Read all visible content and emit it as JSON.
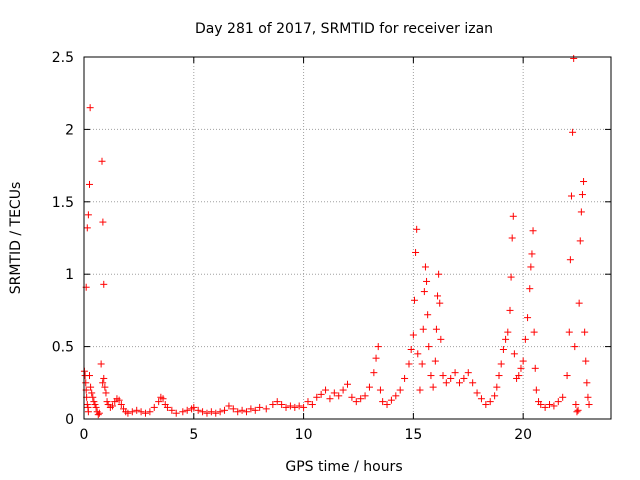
{
  "chart_data": {
    "type": "scatter",
    "title": "Day 281 of 2017, SRMTID for receiver izan",
    "xlabel": "GPS time / hours",
    "ylabel": "SRMTID / TECUs",
    "xlim": [
      0,
      24
    ],
    "ylim": [
      0,
      2.5
    ],
    "grid": true,
    "marker": "+",
    "series_color": "#ff0000",
    "grid_color": "#a0a0a0",
    "x_ticks": [
      {
        "value": 0,
        "label": "0"
      },
      {
        "value": 5,
        "label": "5"
      },
      {
        "value": 10,
        "label": "10"
      },
      {
        "value": 15,
        "label": "15"
      },
      {
        "value": 20,
        "label": "20"
      }
    ],
    "y_ticks": [
      {
        "value": 0,
        "label": "0"
      },
      {
        "value": 0.5,
        "label": "0.5"
      },
      {
        "value": 1,
        "label": "1"
      },
      {
        "value": 1.5,
        "label": "1.5"
      },
      {
        "value": 2,
        "label": "2"
      },
      {
        "value": 2.5,
        "label": "2.5"
      }
    ],
    "series": [
      {
        "name": "SRMTID",
        "points": [
          [
            0.02,
            0.33
          ],
          [
            0.05,
            0.3
          ],
          [
            0.08,
            0.25
          ],
          [
            0.1,
            0.2
          ],
          [
            0.12,
            0.15
          ],
          [
            0.15,
            0.1
          ],
          [
            0.18,
            0.08
          ],
          [
            0.2,
            0.05
          ],
          [
            0.1,
            0.91
          ],
          [
            0.15,
            1.32
          ],
          [
            0.2,
            1.41
          ],
          [
            0.25,
            1.62
          ],
          [
            0.28,
            2.15
          ],
          [
            0.25,
            0.3
          ],
          [
            0.3,
            0.22
          ],
          [
            0.35,
            0.18
          ],
          [
            0.4,
            0.15
          ],
          [
            0.45,
            0.12
          ],
          [
            0.5,
            0.1
          ],
          [
            0.55,
            0.08
          ],
          [
            0.6,
            0.05
          ],
          [
            0.65,
            0.03
          ],
          [
            0.7,
            0.04
          ],
          [
            0.78,
            0.38
          ],
          [
            0.82,
            1.78
          ],
          [
            0.86,
            1.36
          ],
          [
            0.9,
            0.93
          ],
          [
            0.85,
            0.25
          ],
          [
            0.9,
            0.28
          ],
          [
            0.95,
            0.22
          ],
          [
            1.0,
            0.18
          ],
          [
            1.05,
            0.12
          ],
          [
            1.1,
            0.1
          ],
          [
            1.2,
            0.08
          ],
          [
            1.3,
            0.09
          ],
          [
            1.4,
            0.12
          ],
          [
            1.5,
            0.14
          ],
          [
            1.6,
            0.13
          ],
          [
            1.7,
            0.1
          ],
          [
            1.8,
            0.07
          ],
          [
            1.9,
            0.05
          ],
          [
            2.0,
            0.04
          ],
          [
            2.2,
            0.05
          ],
          [
            2.4,
            0.06
          ],
          [
            2.6,
            0.05
          ],
          [
            2.8,
            0.04
          ],
          [
            3.0,
            0.05
          ],
          [
            3.2,
            0.08
          ],
          [
            3.4,
            0.12
          ],
          [
            3.5,
            0.15
          ],
          [
            3.6,
            0.14
          ],
          [
            3.7,
            0.1
          ],
          [
            3.8,
            0.08
          ],
          [
            4.0,
            0.06
          ],
          [
            4.2,
            0.04
          ],
          [
            4.5,
            0.05
          ],
          [
            4.7,
            0.06
          ],
          [
            4.9,
            0.07
          ],
          [
            5.0,
            0.08
          ],
          [
            5.2,
            0.06
          ],
          [
            5.4,
            0.05
          ],
          [
            5.6,
            0.04
          ],
          [
            5.8,
            0.05
          ],
          [
            6.0,
            0.04
          ],
          [
            6.2,
            0.05
          ],
          [
            6.4,
            0.06
          ],
          [
            6.6,
            0.09
          ],
          [
            6.8,
            0.07
          ],
          [
            7.0,
            0.05
          ],
          [
            7.2,
            0.06
          ],
          [
            7.4,
            0.05
          ],
          [
            7.6,
            0.07
          ],
          [
            7.8,
            0.06
          ],
          [
            8.0,
            0.08
          ],
          [
            8.3,
            0.07
          ],
          [
            8.6,
            0.1
          ],
          [
            8.8,
            0.12
          ],
          [
            9.0,
            0.1
          ],
          [
            9.2,
            0.08
          ],
          [
            9.4,
            0.09
          ],
          [
            9.6,
            0.08
          ],
          [
            9.8,
            0.09
          ],
          [
            10.0,
            0.08
          ],
          [
            10.2,
            0.12
          ],
          [
            10.4,
            0.1
          ],
          [
            10.6,
            0.15
          ],
          [
            10.8,
            0.17
          ],
          [
            11.0,
            0.2
          ],
          [
            11.2,
            0.14
          ],
          [
            11.4,
            0.18
          ],
          [
            11.6,
            0.16
          ],
          [
            11.8,
            0.2
          ],
          [
            12.0,
            0.24
          ],
          [
            12.2,
            0.15
          ],
          [
            12.4,
            0.12
          ],
          [
            12.6,
            0.14
          ],
          [
            12.8,
            0.16
          ],
          [
            13.0,
            0.22
          ],
          [
            13.2,
            0.32
          ],
          [
            13.3,
            0.42
          ],
          [
            13.4,
            0.5
          ],
          [
            13.5,
            0.2
          ],
          [
            13.6,
            0.12
          ],
          [
            13.8,
            0.1
          ],
          [
            14.0,
            0.13
          ],
          [
            14.2,
            0.16
          ],
          [
            14.4,
            0.2
          ],
          [
            14.6,
            0.28
          ],
          [
            14.8,
            0.38
          ],
          [
            14.9,
            0.48
          ],
          [
            15.0,
            0.58
          ],
          [
            15.05,
            0.82
          ],
          [
            15.1,
            1.15
          ],
          [
            15.15,
            1.31
          ],
          [
            15.2,
            0.45
          ],
          [
            15.3,
            0.2
          ],
          [
            15.4,
            0.38
          ],
          [
            15.45,
            0.62
          ],
          [
            15.5,
            0.88
          ],
          [
            15.55,
            1.05
          ],
          [
            15.6,
            0.95
          ],
          [
            15.65,
            0.72
          ],
          [
            15.7,
            0.5
          ],
          [
            15.8,
            0.3
          ],
          [
            15.9,
            0.22
          ],
          [
            16.0,
            0.4
          ],
          [
            16.05,
            0.62
          ],
          [
            16.1,
            0.85
          ],
          [
            16.15,
            1.0
          ],
          [
            16.2,
            0.8
          ],
          [
            16.25,
            0.55
          ],
          [
            16.35,
            0.3
          ],
          [
            16.5,
            0.25
          ],
          [
            16.7,
            0.28
          ],
          [
            16.9,
            0.32
          ],
          [
            17.1,
            0.25
          ],
          [
            17.3,
            0.28
          ],
          [
            17.5,
            0.32
          ],
          [
            17.7,
            0.25
          ],
          [
            17.9,
            0.18
          ],
          [
            18.1,
            0.14
          ],
          [
            18.3,
            0.1
          ],
          [
            18.5,
            0.12
          ],
          [
            18.7,
            0.16
          ],
          [
            18.8,
            0.22
          ],
          [
            18.9,
            0.3
          ],
          [
            19.0,
            0.38
          ],
          [
            19.1,
            0.48
          ],
          [
            19.2,
            0.55
          ],
          [
            19.3,
            0.6
          ],
          [
            19.4,
            0.75
          ],
          [
            19.45,
            0.98
          ],
          [
            19.5,
            1.25
          ],
          [
            19.55,
            1.4
          ],
          [
            19.6,
            0.45
          ],
          [
            19.7,
            0.28
          ],
          [
            19.8,
            0.3
          ],
          [
            19.9,
            0.35
          ],
          [
            20.0,
            0.4
          ],
          [
            20.1,
            0.55
          ],
          [
            20.2,
            0.7
          ],
          [
            20.3,
            0.9
          ],
          [
            20.35,
            1.05
          ],
          [
            20.4,
            1.14
          ],
          [
            20.45,
            1.3
          ],
          [
            20.5,
            0.6
          ],
          [
            20.55,
            0.35
          ],
          [
            20.6,
            0.2
          ],
          [
            20.7,
            0.12
          ],
          [
            20.8,
            0.1
          ],
          [
            21.0,
            0.08
          ],
          [
            21.2,
            0.1
          ],
          [
            21.4,
            0.09
          ],
          [
            21.6,
            0.12
          ],
          [
            21.8,
            0.15
          ],
          [
            22.0,
            0.3
          ],
          [
            22.1,
            0.6
          ],
          [
            22.15,
            1.1
          ],
          [
            22.2,
            1.54
          ],
          [
            22.25,
            1.98
          ],
          [
            22.3,
            2.49
          ],
          [
            22.35,
            0.5
          ],
          [
            22.4,
            0.1
          ],
          [
            22.45,
            0.05
          ],
          [
            22.5,
            0.06
          ],
          [
            22.55,
            0.8
          ],
          [
            22.6,
            1.23
          ],
          [
            22.65,
            1.43
          ],
          [
            22.7,
            1.55
          ],
          [
            22.75,
            1.64
          ],
          [
            22.8,
            0.6
          ],
          [
            22.85,
            0.4
          ],
          [
            22.9,
            0.25
          ],
          [
            22.95,
            0.15
          ],
          [
            23.0,
            0.1
          ]
        ]
      }
    ]
  }
}
